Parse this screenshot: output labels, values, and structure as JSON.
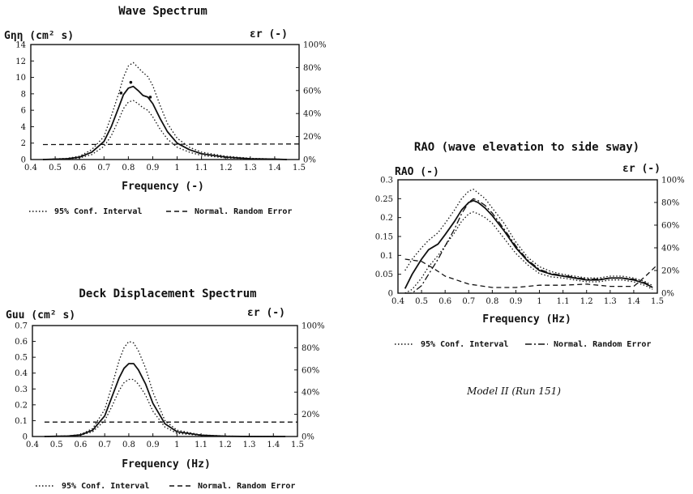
{
  "note": "Model II (Run 151)",
  "chart_data": [
    {
      "type": "line",
      "title": "Wave Spectrum",
      "xlabel": "Frequency (-)",
      "ylabel_left": "Gηη (cm² s)",
      "ylabel_right": "εr (-)",
      "xlim": [
        0.4,
        1.5
      ],
      "ylim": [
        0,
        14
      ],
      "ylim_right": [
        0,
        100
      ],
      "x_ticks": [
        "0.4",
        "0.5",
        "0.6",
        "0.7",
        "0.8",
        "0.9",
        "1",
        "1.1",
        "1.2",
        "1.3",
        "1.4",
        "1.5"
      ],
      "y_ticks": [
        "0",
        "2",
        "4",
        "6",
        "8",
        "10",
        "12",
        "14"
      ],
      "y_right_ticks": [
        "0%",
        "20%",
        "40%",
        "60%",
        "80%",
        "100%"
      ],
      "legend": [
        "95% Conf. Interval",
        "Normal. Random Error"
      ],
      "series": [
        {
          "style": "solid",
          "axis": "left",
          "x": [
            0.45,
            0.55,
            0.6,
            0.65,
            0.7,
            0.73,
            0.76,
            0.78,
            0.8,
            0.82,
            0.84,
            0.86,
            0.88,
            0.9,
            0.93,
            0.96,
            1.0,
            1.05,
            1.1,
            1.2,
            1.3,
            1.4,
            1.45
          ],
          "y": [
            0,
            0.1,
            0.3,
            0.9,
            2.2,
            4.0,
            6.3,
            7.9,
            8.7,
            8.9,
            8.4,
            7.8,
            7.6,
            6.8,
            5.0,
            3.4,
            2.0,
            1.2,
            0.7,
            0.3,
            0.1,
            0.05,
            0
          ]
        },
        {
          "style": "dotted",
          "axis": "left",
          "x": [
            0.45,
            0.55,
            0.6,
            0.65,
            0.7,
            0.73,
            0.76,
            0.78,
            0.8,
            0.82,
            0.84,
            0.86,
            0.88,
            0.9,
            0.93,
            0.96,
            1.0,
            1.05,
            1.1,
            1.2,
            1.3,
            1.4,
            1.45
          ],
          "y": [
            0,
            0.15,
            0.4,
            1.2,
            2.8,
            5.3,
            8.0,
            10.0,
            11.4,
            11.8,
            11.2,
            10.6,
            10.1,
            9.0,
            6.6,
            4.4,
            2.6,
            1.5,
            0.9,
            0.4,
            0.15,
            0.07,
            0
          ]
        },
        {
          "style": "dotted",
          "axis": "left",
          "x": [
            0.45,
            0.55,
            0.6,
            0.65,
            0.7,
            0.73,
            0.76,
            0.78,
            0.8,
            0.82,
            0.84,
            0.86,
            0.88,
            0.9,
            0.93,
            0.96,
            1.0,
            1.05,
            1.1,
            1.2,
            1.3,
            1.4,
            1.45
          ],
          "y": [
            0,
            0.08,
            0.2,
            0.6,
            1.6,
            2.9,
            4.8,
            6.2,
            7.0,
            7.2,
            6.8,
            6.3,
            6.0,
            5.2,
            3.7,
            2.5,
            1.5,
            0.9,
            0.5,
            0.2,
            0.08,
            0.03,
            0
          ]
        },
        {
          "style": "dashed",
          "axis": "right",
          "x": [
            0.45,
            1.5
          ],
          "y": [
            13,
            13.5
          ]
        }
      ],
      "markers": [
        {
          "x": 0.81,
          "y": 9.4
        },
        {
          "x": 0.77,
          "y": 8.1
        },
        {
          "x": 0.89,
          "y": 7.6
        }
      ]
    },
    {
      "type": "line",
      "title": "Deck Displacement Spectrum",
      "xlabel": "Frequency (Hz)",
      "ylabel_left": "Guu (cm² s)",
      "ylabel_right": "εr (-)",
      "xlim": [
        0.4,
        1.5
      ],
      "ylim": [
        0,
        0.7
      ],
      "ylim_right": [
        0,
        100
      ],
      "x_ticks": [
        "0.4",
        "0.5",
        "0.6",
        "0.7",
        "0.8",
        "0.9",
        "1",
        "1.1",
        "1.2",
        "1.3",
        "1.4",
        "1.5"
      ],
      "y_ticks": [
        "0",
        "0.1",
        "0.2",
        "0.3",
        "0.4",
        "0.5",
        "0.6",
        "0.7"
      ],
      "y_right_ticks": [
        "0%",
        "20%",
        "40%",
        "60%",
        "80%",
        "100%"
      ],
      "legend": [
        "95% Conf. Interval",
        "Normal. Random Error"
      ],
      "series": [
        {
          "style": "solid",
          "axis": "left",
          "x": [
            0.45,
            0.55,
            0.6,
            0.65,
            0.7,
            0.73,
            0.76,
            0.78,
            0.8,
            0.82,
            0.84,
            0.87,
            0.9,
            0.95,
            1.0,
            1.1,
            1.2,
            1.3,
            1.45
          ],
          "y": [
            0,
            0.003,
            0.01,
            0.04,
            0.13,
            0.25,
            0.37,
            0.43,
            0.46,
            0.46,
            0.42,
            0.33,
            0.21,
            0.08,
            0.03,
            0.008,
            0.002,
            0,
            0
          ]
        },
        {
          "style": "dotted",
          "axis": "left",
          "x": [
            0.45,
            0.55,
            0.6,
            0.65,
            0.7,
            0.73,
            0.76,
            0.78,
            0.8,
            0.82,
            0.84,
            0.87,
            0.9,
            0.95,
            1.0,
            1.1,
            1.2,
            1.3,
            1.45
          ],
          "y": [
            0,
            0.004,
            0.013,
            0.05,
            0.17,
            0.32,
            0.48,
            0.56,
            0.6,
            0.59,
            0.54,
            0.43,
            0.28,
            0.1,
            0.04,
            0.01,
            0.003,
            0,
            0
          ]
        },
        {
          "style": "dotted",
          "axis": "left",
          "x": [
            0.45,
            0.55,
            0.6,
            0.65,
            0.7,
            0.73,
            0.76,
            0.78,
            0.8,
            0.82,
            0.84,
            0.87,
            0.9,
            0.95,
            1.0,
            1.1,
            1.2,
            1.3,
            1.45
          ],
          "y": [
            0,
            0.002,
            0.008,
            0.03,
            0.1,
            0.19,
            0.29,
            0.34,
            0.36,
            0.36,
            0.33,
            0.26,
            0.16,
            0.06,
            0.02,
            0.006,
            0.001,
            0,
            0
          ]
        },
        {
          "style": "dashed",
          "axis": "right",
          "x": [
            0.45,
            1.5
          ],
          "y": [
            13,
            13
          ]
        }
      ]
    },
    {
      "type": "line",
      "title": "RAO (wave elevation to side sway)",
      "xlabel": "Frequency (Hz)",
      "ylabel_left": "RAO (-)",
      "ylabel_right": "εr (-)",
      "xlim": [
        0.4,
        1.5
      ],
      "ylim": [
        0,
        0.3
      ],
      "ylim_right": [
        0,
        100
      ],
      "x_ticks": [
        "0.4",
        "0.5",
        "0.6",
        "0.7",
        "0.8",
        "0.9",
        "1",
        "1.1",
        "1.2",
        "1.3",
        "1.4",
        "1.5"
      ],
      "y_ticks": [
        "0",
        "0.05",
        "0.1",
        "0.15",
        "0.2",
        "0.25",
        "0.3"
      ],
      "y_right_ticks": [
        "0%",
        "20%",
        "40%",
        "60%",
        "80%",
        "100%"
      ],
      "legend": [
        "95% Conf. Interval",
        "Normal. Random Error"
      ],
      "series": [
        {
          "style": "solid",
          "axis": "left",
          "x": [
            0.43,
            0.46,
            0.5,
            0.53,
            0.57,
            0.6,
            0.64,
            0.67,
            0.7,
            0.72,
            0.74,
            0.77,
            0.8,
            0.85,
            0.9,
            0.95,
            1.0,
            1.05,
            1.1,
            1.15,
            1.2,
            1.25,
            1.3,
            1.35,
            1.4,
            1.45,
            1.48
          ],
          "y": [
            0.012,
            0.05,
            0.09,
            0.115,
            0.13,
            0.155,
            0.19,
            0.22,
            0.24,
            0.245,
            0.24,
            0.225,
            0.205,
            0.165,
            0.12,
            0.085,
            0.06,
            0.05,
            0.045,
            0.04,
            0.035,
            0.035,
            0.04,
            0.04,
            0.035,
            0.025,
            0.015
          ]
        },
        {
          "style": "dotted",
          "axis": "left",
          "x": [
            0.43,
            0.46,
            0.5,
            0.53,
            0.57,
            0.6,
            0.64,
            0.67,
            0.7,
            0.72,
            0.74,
            0.77,
            0.8,
            0.85,
            0.9,
            0.95,
            1.0,
            1.05,
            1.1,
            1.15,
            1.2,
            1.25,
            1.3,
            1.35,
            1.4,
            1.45,
            1.48
          ],
          "y": [
            0.06,
            0.09,
            0.12,
            0.14,
            0.16,
            0.185,
            0.22,
            0.25,
            0.27,
            0.275,
            0.265,
            0.25,
            0.225,
            0.185,
            0.135,
            0.095,
            0.07,
            0.057,
            0.05,
            0.045,
            0.04,
            0.04,
            0.045,
            0.045,
            0.04,
            0.03,
            0.02
          ]
        },
        {
          "style": "dotted",
          "axis": "left",
          "x": [
            0.43,
            0.46,
            0.5,
            0.53,
            0.57,
            0.6,
            0.64,
            0.67,
            0.7,
            0.72,
            0.74,
            0.77,
            0.8,
            0.85,
            0.9,
            0.95,
            1.0,
            1.05,
            1.1,
            1.15,
            1.2,
            1.25,
            1.3,
            1.35,
            1.4,
            1.45,
            1.48
          ],
          "y": [
            0.0,
            0.01,
            0.04,
            0.07,
            0.1,
            0.125,
            0.16,
            0.19,
            0.21,
            0.215,
            0.21,
            0.2,
            0.185,
            0.145,
            0.105,
            0.075,
            0.052,
            0.043,
            0.04,
            0.035,
            0.03,
            0.03,
            0.035,
            0.035,
            0.03,
            0.02,
            0.01
          ]
        },
        {
          "style": "dashdot",
          "axis": "left",
          "x": [
            0.43,
            0.46,
            0.5,
            0.53,
            0.57,
            0.6,
            0.64,
            0.67,
            0.7,
            0.72,
            0.74,
            0.77,
            0.8,
            0.85,
            0.9,
            0.95,
            1.0,
            1.05,
            1.1,
            1.15,
            1.2,
            1.25,
            1.3,
            1.35,
            1.4,
            1.45,
            1.48
          ],
          "y": [
            0.0,
            0.0,
            0.02,
            0.05,
            0.09,
            0.125,
            0.17,
            0.21,
            0.24,
            0.25,
            0.245,
            0.232,
            0.212,
            0.17,
            0.125,
            0.088,
            0.063,
            0.052,
            0.047,
            0.042,
            0.037,
            0.037,
            0.04,
            0.04,
            0.037,
            0.027,
            0.015
          ]
        },
        {
          "style": "dashed",
          "axis": "right",
          "x": [
            0.43,
            0.5,
            0.55,
            0.6,
            0.7,
            0.8,
            0.9,
            1.0,
            1.1,
            1.2,
            1.3,
            1.4,
            1.45,
            1.5
          ],
          "y": [
            30,
            28,
            22,
            15,
            8,
            5,
            5,
            7,
            7,
            8,
            6,
            6,
            15,
            25
          ]
        }
      ]
    }
  ]
}
